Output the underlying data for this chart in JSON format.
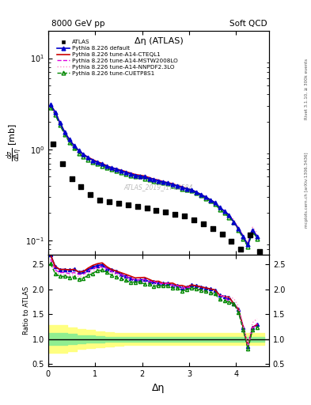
{
  "title_left": "8000 GeV pp",
  "title_right": "Soft QCD",
  "plot_title": "Δη (ATLAS)",
  "xlabel": "Δη",
  "ylabel_ratio": "Ratio to ATLAS",
  "right_label_top": "Rivet 3.1.10, ≥ 300k events",
  "right_label_bottom": "mcplots.cern.ch [arXiv:1306.3436]",
  "watermark": "ATLAS_2019_I1762584",
  "atlas_x": [
    0.1,
    0.3,
    0.5,
    0.7,
    0.9,
    1.1,
    1.3,
    1.5,
    1.7,
    1.9,
    2.1,
    2.3,
    2.5,
    2.7,
    2.9,
    3.1,
    3.3,
    3.5,
    3.7,
    3.9,
    4.1,
    4.3,
    4.5
  ],
  "atlas_y": [
    1.15,
    0.7,
    0.48,
    0.39,
    0.32,
    0.28,
    0.265,
    0.255,
    0.245,
    0.235,
    0.225,
    0.215,
    0.205,
    0.195,
    0.185,
    0.168,
    0.152,
    0.135,
    0.118,
    0.098,
    0.08,
    0.115,
    0.075
  ],
  "py_x": [
    0.05,
    0.15,
    0.25,
    0.35,
    0.45,
    0.55,
    0.65,
    0.75,
    0.85,
    0.95,
    1.05,
    1.15,
    1.25,
    1.35,
    1.45,
    1.55,
    1.65,
    1.75,
    1.85,
    1.95,
    2.05,
    2.15,
    2.25,
    2.35,
    2.45,
    2.55,
    2.65,
    2.75,
    2.85,
    2.95,
    3.05,
    3.15,
    3.25,
    3.35,
    3.45,
    3.55,
    3.65,
    3.75,
    3.85,
    3.95,
    4.05,
    4.15,
    4.25,
    4.35,
    4.45
  ],
  "default_y": [
    3.1,
    2.55,
    1.95,
    1.55,
    1.28,
    1.1,
    0.97,
    0.88,
    0.81,
    0.76,
    0.72,
    0.69,
    0.65,
    0.63,
    0.61,
    0.58,
    0.56,
    0.54,
    0.52,
    0.51,
    0.5,
    0.48,
    0.47,
    0.45,
    0.44,
    0.43,
    0.41,
    0.4,
    0.38,
    0.37,
    0.36,
    0.34,
    0.32,
    0.3,
    0.28,
    0.26,
    0.23,
    0.21,
    0.19,
    0.16,
    0.135,
    0.11,
    0.09,
    0.13,
    0.11
  ],
  "cteql1_y": [
    3.1,
    2.55,
    1.95,
    1.55,
    1.28,
    1.1,
    0.97,
    0.88,
    0.82,
    0.77,
    0.73,
    0.7,
    0.66,
    0.63,
    0.61,
    0.59,
    0.57,
    0.55,
    0.53,
    0.52,
    0.51,
    0.49,
    0.47,
    0.46,
    0.44,
    0.43,
    0.42,
    0.4,
    0.39,
    0.37,
    0.36,
    0.34,
    0.32,
    0.3,
    0.28,
    0.26,
    0.23,
    0.21,
    0.19,
    0.16,
    0.135,
    0.11,
    0.09,
    0.13,
    0.11
  ],
  "mstw_y": [
    3.0,
    2.48,
    1.9,
    1.51,
    1.24,
    1.07,
    0.95,
    0.86,
    0.8,
    0.75,
    0.71,
    0.68,
    0.65,
    0.62,
    0.6,
    0.58,
    0.56,
    0.54,
    0.52,
    0.51,
    0.5,
    0.48,
    0.47,
    0.45,
    0.44,
    0.43,
    0.41,
    0.4,
    0.38,
    0.37,
    0.35,
    0.33,
    0.31,
    0.29,
    0.27,
    0.25,
    0.23,
    0.21,
    0.18,
    0.16,
    0.132,
    0.108,
    0.088,
    0.128,
    0.112
  ],
  "nnpdf_y": [
    2.95,
    2.44,
    1.87,
    1.48,
    1.22,
    1.05,
    0.93,
    0.84,
    0.78,
    0.73,
    0.7,
    0.67,
    0.64,
    0.61,
    0.59,
    0.57,
    0.55,
    0.53,
    0.51,
    0.5,
    0.49,
    0.47,
    0.46,
    0.44,
    0.43,
    0.42,
    0.41,
    0.39,
    0.38,
    0.36,
    0.35,
    0.33,
    0.31,
    0.29,
    0.27,
    0.25,
    0.23,
    0.21,
    0.19,
    0.17,
    0.14,
    0.115,
    0.095,
    0.14,
    0.12
  ],
  "cuetp_y": [
    2.9,
    2.4,
    1.84,
    1.46,
    1.2,
    1.03,
    0.91,
    0.83,
    0.77,
    0.72,
    0.69,
    0.66,
    0.63,
    0.6,
    0.58,
    0.56,
    0.54,
    0.52,
    0.51,
    0.5,
    0.48,
    0.47,
    0.45,
    0.44,
    0.43,
    0.42,
    0.4,
    0.39,
    0.37,
    0.36,
    0.35,
    0.33,
    0.31,
    0.29,
    0.27,
    0.25,
    0.22,
    0.2,
    0.18,
    0.16,
    0.13,
    0.105,
    0.085,
    0.125,
    0.105
  ],
  "default_color": "#0000cc",
  "cteql1_color": "#cc0000",
  "mstw_color": "#dd00dd",
  "nnpdf_color": "#ff88cc",
  "cuetp_color": "#008800",
  "atlas_color": "#000000",
  "ylim_main": [
    0.07,
    20.0
  ],
  "ylim_ratio": [
    0.45,
    2.7
  ],
  "xlim": [
    0.0,
    4.7
  ],
  "ratio_ymin_lines": 2.3,
  "green_band_xvals": [
    0.0,
    0.2,
    0.4,
    0.6,
    0.8,
    1.0,
    1.2,
    1.4,
    1.6,
    1.8,
    2.0,
    2.2,
    2.4,
    2.6,
    2.8,
    3.0,
    3.2,
    3.4,
    3.6,
    3.8,
    4.0,
    4.2,
    4.4,
    4.6
  ],
  "green_band_lo": [
    0.88,
    0.88,
    0.9,
    0.92,
    0.93,
    0.94,
    0.95,
    0.95,
    0.95,
    0.95,
    0.95,
    0.95,
    0.95,
    0.95,
    0.95,
    0.95,
    0.95,
    0.95,
    0.95,
    0.95,
    0.95,
    0.95,
    0.95,
    0.95
  ],
  "green_band_hi": [
    1.12,
    1.12,
    1.1,
    1.08,
    1.07,
    1.06,
    1.05,
    1.05,
    1.05,
    1.05,
    1.05,
    1.05,
    1.05,
    1.05,
    1.05,
    1.05,
    1.05,
    1.05,
    1.05,
    1.05,
    1.05,
    1.05,
    1.05,
    1.05
  ],
  "yellow_band_lo": [
    0.72,
    0.72,
    0.76,
    0.8,
    0.82,
    0.84,
    0.86,
    0.87,
    0.88,
    0.88,
    0.88,
    0.88,
    0.88,
    0.88,
    0.88,
    0.88,
    0.88,
    0.88,
    0.88,
    0.88,
    0.88,
    0.88,
    0.88,
    0.88
  ],
  "yellow_band_hi": [
    1.28,
    1.28,
    1.24,
    1.2,
    1.18,
    1.16,
    1.14,
    1.13,
    1.12,
    1.12,
    1.12,
    1.12,
    1.12,
    1.12,
    1.12,
    1.12,
    1.12,
    1.12,
    1.12,
    1.12,
    1.12,
    1.12,
    1.12,
    1.12
  ]
}
